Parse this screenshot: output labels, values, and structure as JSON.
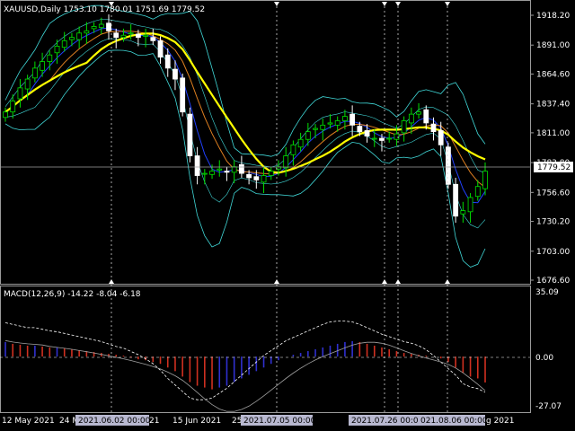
{
  "main_panel": {
    "header": "XAUUSD,Daily  1753.10 1780.01 1751.69 1779.52",
    "price_ticks": [
      "1918.20",
      "1891.00",
      "1864.60",
      "1837.40",
      "1811.00",
      "1783.80",
      "1756.60",
      "1730.20",
      "1703.00",
      "1676.60"
    ],
    "current_price_label": "1779.52"
  },
  "sub_panel": {
    "header": "MACD(12,26,9) -14.22 -8.04 -6.18",
    "ticks": [
      "35.09",
      "0.00",
      "-27.07"
    ]
  },
  "time_axis": {
    "labels": [
      "12 May 2021",
      "24 M",
      "21",
      "15 Jun 2021",
      "25",
      "2021.07.05 00:00",
      "2021.07.26 00:00",
      "2021.08.06 00:00",
      "g 2021"
    ],
    "highlighted_dates": [
      "2021.06.02 00:00",
      "2021.07.05 00:00",
      "2021.07.26 00:00",
      "021.08.06 00:00"
    ]
  },
  "colors": {
    "background": "#000000",
    "bull_candle": "#00e000",
    "bear_candle": "#ffffff",
    "yellow_ma": "#ffff00",
    "orange_ma": "#e08020",
    "blue_ma": "#2040ff",
    "bands": "#40d8d8",
    "macd_pos": "#3030d0",
    "macd_neg": "#d03020",
    "signal_line": "#ffffff"
  },
  "chart_data": [
    {
      "type": "candlestick",
      "title": "XAUUSD,Daily",
      "ylim": [
        1676.6,
        1918.2
      ],
      "values": [
        1830,
        1840,
        1852,
        1860,
        1870,
        1876,
        1882,
        1890,
        1895,
        1898,
        1902,
        1904,
        1908,
        1910,
        1904,
        1898,
        1900,
        1902,
        1898,
        1900,
        1895,
        1880,
        1870,
        1860,
        1830,
        1790,
        1772,
        1774,
        1776,
        1778,
        1775,
        1780,
        1774,
        1770,
        1768,
        1772,
        1776,
        1780,
        1790,
        1800,
        1805,
        1812,
        1815,
        1818,
        1820,
        1822,
        1826,
        1818,
        1812,
        1808,
        1806,
        1804,
        1806,
        1810,
        1822,
        1828,
        1830,
        1820,
        1812,
        1800,
        1764,
        1735,
        1740,
        1752,
        1762,
        1776
      ]
    },
    {
      "type": "bar",
      "title": "MACD(12,26,9)",
      "ylim": [
        -27.07,
        35.09
      ],
      "values": [
        8,
        7,
        6.5,
        6,
        6,
        5.5,
        5,
        5,
        4.5,
        4,
        3.5,
        3,
        2.5,
        2,
        1.5,
        1,
        0.5,
        -0.5,
        -1.5,
        -2,
        -3,
        -4,
        -6,
        -8,
        -11,
        -14,
        -16,
        -17,
        -18,
        -17,
        -16,
        -14,
        -12,
        -10,
        -8,
        -6,
        -4,
        -2,
        0,
        1,
        2,
        3,
        4,
        5,
        6,
        7,
        8,
        8.5,
        8,
        7,
        6,
        5,
        4,
        3,
        2,
        1.5,
        1,
        0.5,
        0,
        -1,
        -3,
        -6,
        -9,
        -11,
        -12,
        -14.22
      ]
    }
  ]
}
